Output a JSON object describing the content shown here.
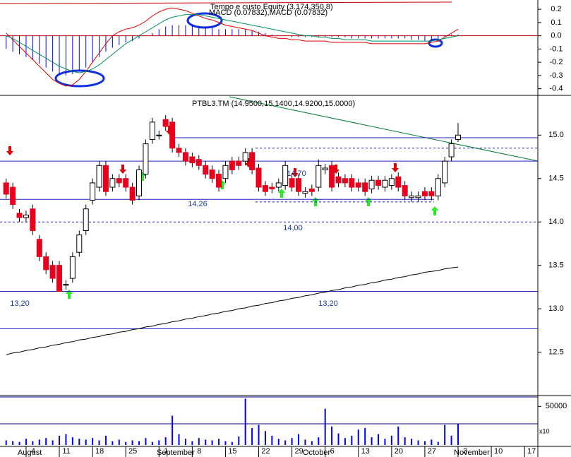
{
  "chart_data": [
    {
      "type": "macd",
      "annotation": "Tempo e custo Equity (3.174.350,8)",
      "title": "MACD (0.07832),MACD (0.07832)",
      "color": "#0000ff",
      "values": [
        -0.1,
        -0.12,
        -0.14,
        -0.16,
        -0.18,
        -0.21,
        -0.24,
        -0.27,
        -0.29,
        -0.3,
        -0.29,
        -0.27,
        -0.24,
        -0.2,
        -0.16,
        -0.12,
        -0.09,
        -0.07,
        -0.05,
        -0.04,
        -0.02,
        0.0,
        0.02,
        0.05,
        0.07,
        0.08,
        0.08,
        0.08,
        0.08,
        0.07,
        0.07,
        0.06,
        0.05,
        0.05,
        0.05,
        0.05,
        0.05,
        0.04,
        0.03,
        0.02,
        0.01,
        0.0,
        0.0,
        -0.01,
        -0.01,
        -0.01,
        -0.01,
        -0.01,
        -0.01,
        -0.01,
        -0.01,
        -0.01,
        -0.02,
        -0.02,
        -0.02,
        -0.02,
        -0.02,
        -0.02,
        -0.02,
        -0.02,
        -0.02,
        -0.03,
        -0.03,
        -0.04,
        -0.04,
        -0.03,
        -0.01,
        0.01,
        0.01
      ],
      "series": [
        {
          "color": "#e00000",
          "values": [
            0.02,
            -0.03,
            -0.08,
            -0.13,
            -0.18,
            -0.23,
            -0.28,
            -0.33,
            -0.36,
            -0.38,
            -0.37,
            -0.33,
            -0.27,
            -0.2,
            -0.13,
            -0.06,
            0.0,
            0.03,
            0.05,
            0.06,
            0.08,
            0.11,
            0.15,
            0.18,
            0.2,
            0.21,
            0.2,
            0.19,
            0.17,
            0.15,
            0.13,
            0.12,
            0.1,
            0.08,
            0.07,
            0.06,
            0.05,
            0.04,
            0.02,
            0.0,
            -0.01,
            -0.02,
            -0.02,
            -0.03,
            -0.03,
            -0.04,
            -0.04,
            -0.04,
            -0.04,
            -0.05,
            -0.05,
            -0.05,
            -0.05,
            -0.05,
            -0.05,
            -0.06,
            -0.06,
            -0.06,
            -0.06,
            -0.06,
            -0.06,
            -0.06,
            -0.06,
            -0.06,
            -0.05,
            -0.04,
            -0.01,
            0.02,
            0.05
          ]
        },
        {
          "color": "#009060",
          "values": [
            0.0,
            -0.02,
            -0.05,
            -0.08,
            -0.11,
            -0.14,
            -0.17,
            -0.2,
            -0.23,
            -0.25,
            -0.27,
            -0.28,
            -0.27,
            -0.25,
            -0.22,
            -0.18,
            -0.14,
            -0.1,
            -0.06,
            -0.03,
            0.0,
            0.03,
            0.06,
            0.09,
            0.12,
            0.14,
            0.15,
            0.16,
            0.16,
            0.16,
            0.15,
            0.14,
            0.13,
            0.12,
            0.11,
            0.1,
            0.09,
            0.08,
            0.07,
            0.06,
            0.05,
            0.04,
            0.03,
            0.02,
            0.01,
            0.0,
            0.0,
            -0.01,
            -0.01,
            -0.02,
            -0.02,
            -0.03,
            -0.03,
            -0.03,
            -0.03,
            -0.04,
            -0.04,
            -0.04,
            -0.04,
            -0.04,
            -0.04,
            -0.04,
            -0.04,
            -0.04,
            -0.04,
            -0.03,
            -0.02,
            -0.01,
            0.0
          ]
        }
      ],
      "ylim": [
        -0.45,
        0.27
      ],
      "yticks": [
        0.2,
        0.1,
        {
          "value": 0,
          "label": "0.0"
        },
        -0.1,
        -0.2,
        -0.3,
        -0.4
      ]
    },
    {
      "type": "candlestick",
      "title": "PTBL3.TM (14.9500,15.1400,14.9200,15.0000)",
      "up_color": "#ffffff",
      "down_color": "#e8001c",
      "open": [
        14.45,
        14.4,
        14.1,
        14.05,
        14.15,
        13.8,
        13.6,
        13.5,
        13.5,
        13.28,
        13.35,
        13.65,
        13.9,
        14.25,
        14.4,
        14.65,
        14.4,
        14.5,
        14.5,
        14.4,
        14.3,
        14.55,
        14.95,
        15.0,
        15.18,
        15.15,
        14.85,
        14.8,
        14.75,
        14.72,
        14.65,
        14.6,
        14.55,
        14.5,
        14.7,
        14.7,
        14.7,
        14.8,
        14.62,
        14.42,
        14.4,
        14.4,
        14.42,
        14.5,
        14.5,
        14.33,
        14.38,
        14.4,
        14.6,
        14.65,
        14.52,
        14.5,
        14.5,
        14.45,
        14.45,
        14.38,
        14.48,
        14.4,
        14.42,
        14.52,
        14.42,
        14.28,
        14.28,
        14.35,
        14.35,
        14.3,
        14.45,
        14.75,
        14.95
      ],
      "high": [
        14.5,
        14.45,
        14.15,
        14.13,
        14.2,
        13.85,
        13.65,
        13.55,
        13.55,
        13.33,
        13.65,
        13.9,
        14.2,
        14.5,
        14.7,
        14.7,
        14.55,
        14.55,
        14.55,
        14.45,
        14.65,
        14.95,
        15.2,
        15.05,
        15.23,
        15.2,
        14.9,
        14.85,
        14.8,
        14.77,
        14.7,
        14.65,
        14.6,
        14.7,
        14.75,
        14.75,
        14.85,
        14.85,
        14.67,
        14.47,
        14.45,
        14.5,
        14.7,
        14.55,
        14.55,
        14.4,
        14.43,
        14.72,
        14.67,
        14.7,
        14.57,
        14.55,
        14.55,
        14.5,
        14.5,
        14.53,
        14.53,
        14.53,
        14.55,
        14.57,
        14.47,
        14.35,
        14.35,
        14.4,
        14.4,
        14.55,
        14.75,
        14.95,
        15.14
      ],
      "low": [
        14.27,
        14.15,
        14.0,
        14.0,
        13.85,
        13.55,
        13.4,
        13.3,
        13.2,
        13.22,
        13.3,
        13.6,
        13.85,
        14.2,
        14.35,
        14.3,
        14.35,
        14.4,
        14.35,
        14.2,
        14.25,
        14.5,
        14.9,
        14.95,
        15.05,
        14.8,
        14.75,
        14.65,
        14.63,
        14.6,
        14.5,
        14.45,
        14.35,
        14.45,
        14.55,
        14.6,
        14.65,
        14.55,
        14.35,
        14.3,
        14.33,
        14.35,
        14.37,
        14.35,
        14.3,
        14.28,
        14.3,
        14.35,
        14.55,
        14.35,
        14.4,
        14.4,
        14.35,
        14.35,
        14.3,
        14.33,
        14.37,
        14.35,
        14.37,
        14.35,
        14.25,
        14.23,
        14.23,
        14.25,
        14.25,
        14.25,
        14.4,
        14.7,
        14.92
      ],
      "close": [
        14.32,
        14.2,
        14.05,
        14.08,
        13.9,
        13.6,
        13.45,
        13.35,
        13.2,
        13.28,
        13.6,
        13.85,
        14.15,
        14.45,
        14.65,
        14.35,
        14.5,
        14.45,
        14.4,
        14.25,
        14.6,
        14.9,
        15.15,
        15.0,
        15.1,
        14.85,
        14.8,
        14.7,
        14.68,
        14.65,
        14.55,
        14.5,
        14.4,
        14.65,
        14.6,
        14.65,
        14.8,
        14.6,
        14.4,
        14.35,
        14.38,
        14.45,
        14.65,
        14.4,
        14.35,
        14.35,
        14.35,
        14.65,
        14.62,
        14.4,
        14.45,
        14.45,
        14.4,
        14.4,
        14.35,
        14.48,
        14.42,
        14.48,
        14.5,
        14.4,
        14.3,
        14.3,
        14.3,
        14.3,
        14.3,
        14.5,
        14.7,
        14.9,
        15.0
      ],
      "series": [
        {
          "color": "#000000",
          "values": [
            12.47,
            12.49,
            12.5,
            12.52,
            12.53,
            12.55,
            12.56,
            12.58,
            12.59,
            12.61,
            12.62,
            12.64,
            12.65,
            12.67,
            12.68,
            12.7,
            12.71,
            12.73,
            12.74,
            12.76,
            12.77,
            12.79,
            12.8,
            12.82,
            12.83,
            12.85,
            12.86,
            12.88,
            12.89,
            12.91,
            12.92,
            12.94,
            12.95,
            12.97,
            12.98,
            13.0,
            13.01,
            13.03,
            13.04,
            13.06,
            13.07,
            13.09,
            13.1,
            13.12,
            13.13,
            13.15,
            13.16,
            13.18,
            13.19,
            13.21,
            13.22,
            13.24,
            13.25,
            13.27,
            13.28,
            13.3,
            13.31,
            13.33,
            13.34,
            13.36,
            13.37,
            13.39,
            13.4,
            13.42,
            13.43,
            13.44,
            13.46,
            13.47,
            13.48
          ]
        }
      ],
      "levels": [
        {
          "value": 14.7,
          "label": "14.70"
        },
        {
          "value": 14.26,
          "label": "14,26"
        },
        {
          "value": 14.0,
          "label": "14,00"
        },
        {
          "value": 13.2,
          "label": "13,20"
        }
      ],
      "lines": [
        14.97,
        14.85,
        14.23,
        12.77
      ],
      "ylim": [
        12.0,
        15.45
      ],
      "yticks": [
        {
          "value": 15,
          "label": "15.0"
        },
        {
          "value": 14.5,
          "label": "14.5"
        },
        {
          "value": 14,
          "label": "14.0"
        },
        {
          "value": 13.5,
          "label": "13.5"
        },
        {
          "value": 13,
          "label": "13.0"
        },
        {
          "value": 12.5,
          "label": "12.5"
        }
      ]
    },
    {
      "type": "bar",
      "annotation": "x10",
      "color": "#0000ff",
      "values": [
        6000,
        5000,
        4000,
        8000,
        5000,
        7000,
        9000,
        6000,
        12000,
        14000,
        10000,
        8000,
        7000,
        9000,
        6000,
        12000,
        5000,
        7000,
        4000,
        6000,
        5000,
        9000,
        4000,
        6000,
        10000,
        38000,
        14000,
        8000,
        5000,
        9000,
        7000,
        6000,
        8000,
        5000,
        4000,
        11000,
        60000,
        22000,
        26000,
        18000,
        12000,
        8000,
        6000,
        9000,
        14000,
        7000,
        5000,
        10000,
        47000,
        24000,
        15000,
        9000,
        12000,
        20000,
        22000,
        10000,
        14000,
        8000,
        12000,
        24000,
        10000,
        8000,
        6000,
        5000,
        7000,
        4000,
        26000,
        12000,
        27000
      ],
      "ylim": [
        0,
        64000
      ],
      "yticks": [
        50000
      ],
      "xlim": [
        -0.5,
        80
      ],
      "xticks": [
        {
          "value": 3,
          "label": "4"
        },
        {
          "value": 8,
          "label": "11"
        },
        {
          "value": 13,
          "label": "18"
        },
        {
          "value": 18,
          "label": "25"
        },
        {
          "value": 23,
          "label": "1"
        },
        {
          "value": 28,
          "label": "8"
        },
        {
          "value": 33,
          "label": "15"
        },
        {
          "value": 38,
          "label": "22"
        },
        {
          "value": 43,
          "label": "29"
        },
        {
          "value": 48,
          "label": "6"
        },
        {
          "value": 53,
          "label": "13"
        },
        {
          "value": 58,
          "label": "20"
        },
        {
          "value": 63,
          "label": "27"
        },
        {
          "value": 68,
          "label": "3"
        },
        {
          "value": 73,
          "label": "10"
        },
        {
          "value": 78,
          "label": "17"
        }
      ],
      "months": [
        "August",
        "September",
        "October",
        "November"
      ]
    }
  ]
}
